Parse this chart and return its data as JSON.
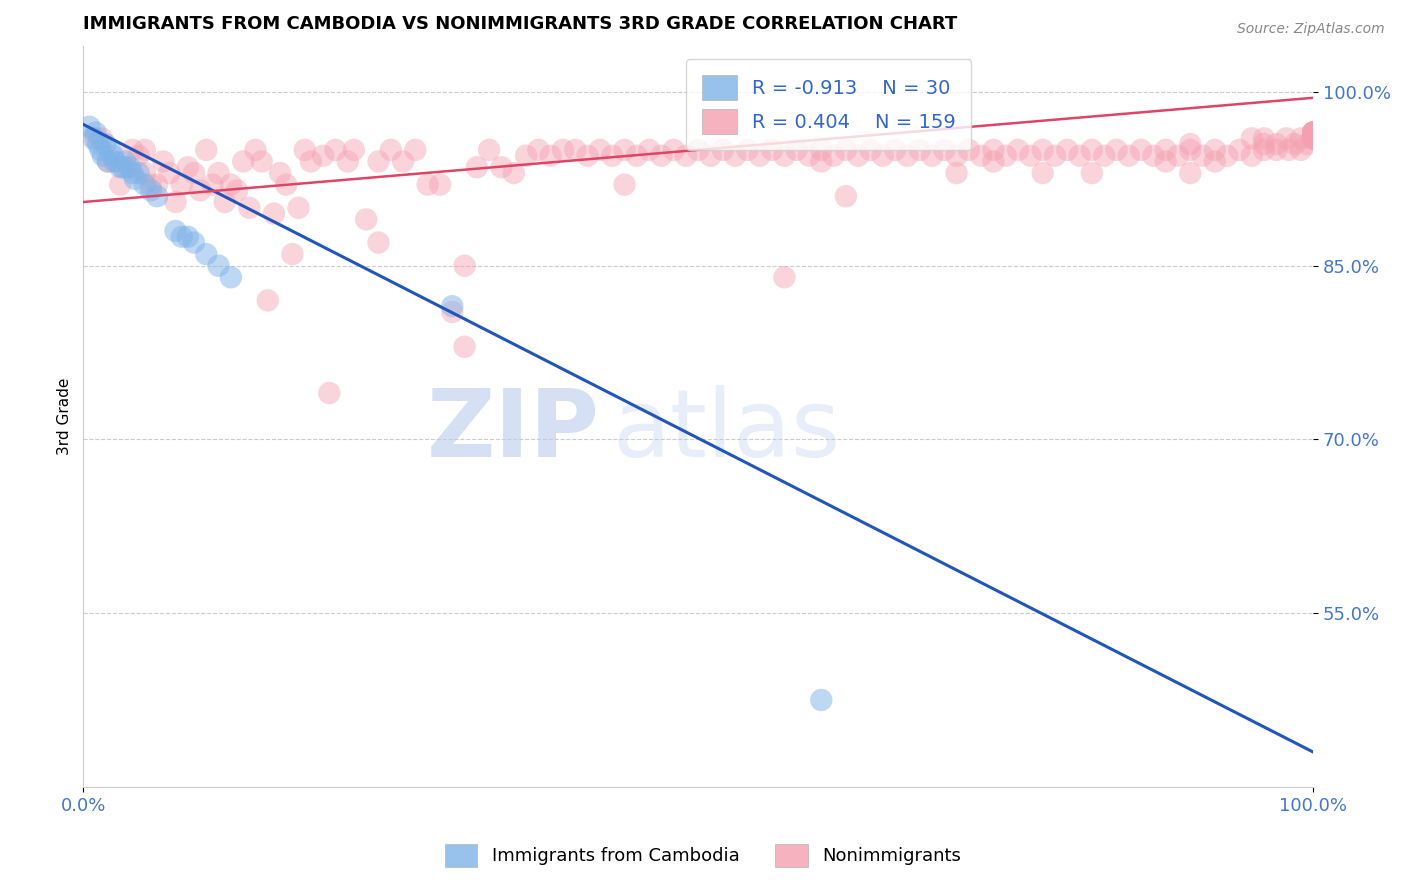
{
  "title": "IMMIGRANTS FROM CAMBODIA VS NONIMMIGRANTS 3RD GRADE CORRELATION CHART",
  "source": "Source: ZipAtlas.com",
  "ylabel": "3rd Grade",
  "xlim": [
    0.0,
    1.0
  ],
  "ylim": [
    0.4,
    1.04
  ],
  "yticks": [
    0.55,
    0.7,
    0.85,
    1.0
  ],
  "ytick_labels": [
    "55.0%",
    "70.0%",
    "85.0%",
    "100.0%"
  ],
  "xticks": [
    0.0,
    1.0
  ],
  "xtick_labels": [
    "0.0%",
    "100.0%"
  ],
  "blue_R": -0.913,
  "blue_N": 30,
  "pink_R": 0.404,
  "pink_N": 159,
  "blue_color": "#7EB3E8",
  "pink_color": "#F4A0B0",
  "blue_line_color": "#2255BB",
  "pink_line_color": "#DD4466",
  "legend_label_blue": "Immigrants from Cambodia",
  "legend_label_pink": "Nonimmigrants",
  "watermark_zip": "ZIP",
  "watermark_atlas": "atlas",
  "blue_scatter_x": [
    0.005,
    0.008,
    0.01,
    0.012,
    0.014,
    0.016,
    0.018,
    0.02,
    0.022,
    0.024,
    0.026,
    0.03,
    0.032,
    0.034,
    0.038,
    0.04,
    0.042,
    0.045,
    0.05,
    0.055,
    0.06,
    0.075,
    0.08,
    0.085,
    0.09,
    0.1,
    0.11,
    0.12,
    0.3,
    0.6
  ],
  "blue_scatter_y": [
    0.97,
    0.96,
    0.965,
    0.955,
    0.95,
    0.945,
    0.955,
    0.94,
    0.95,
    0.945,
    0.94,
    0.935,
    0.935,
    0.94,
    0.935,
    0.93,
    0.925,
    0.93,
    0.92,
    0.915,
    0.91,
    0.88,
    0.875,
    0.875,
    0.87,
    0.86,
    0.85,
    0.84,
    0.815,
    0.475
  ],
  "pink_scatter_x": [
    0.01,
    0.02,
    0.03,
    0.04,
    0.05,
    0.05,
    0.06,
    0.065,
    0.07,
    0.08,
    0.09,
    0.1,
    0.11,
    0.12,
    0.13,
    0.14,
    0.15,
    0.16,
    0.18,
    0.2,
    0.22,
    0.25,
    0.27,
    0.29,
    0.31,
    0.33,
    0.35,
    0.37,
    0.39,
    0.4,
    0.42,
    0.44,
    0.46,
    0.48,
    0.5,
    0.52,
    0.54,
    0.56,
    0.58,
    0.6,
    0.62,
    0.64,
    0.66,
    0.68,
    0.7,
    0.72,
    0.74,
    0.76,
    0.78,
    0.8,
    0.82,
    0.84,
    0.86,
    0.88,
    0.9,
    0.92,
    0.94,
    0.96,
    0.97,
    0.98,
    0.99,
    1.0,
    1.0,
    1.0,
    1.0,
    1.0,
    1.0,
    1.0,
    1.0,
    1.0,
    0.015,
    0.025,
    0.035,
    0.045,
    0.055,
    0.075,
    0.085,
    0.095,
    0.105,
    0.115,
    0.125,
    0.135,
    0.145,
    0.155,
    0.165,
    0.175,
    0.185,
    0.195,
    0.205,
    0.215,
    0.23,
    0.24,
    0.26,
    0.28,
    0.3,
    0.32,
    0.34,
    0.36,
    0.38,
    0.41,
    0.43,
    0.45,
    0.47,
    0.49,
    0.51,
    0.53,
    0.55,
    0.57,
    0.59,
    0.61,
    0.63,
    0.65,
    0.67,
    0.69,
    0.71,
    0.73,
    0.75,
    0.77,
    0.79,
    0.81,
    0.83,
    0.85,
    0.87,
    0.89,
    0.91,
    0.93,
    0.95,
    0.96,
    0.97,
    0.985,
    0.995,
    1.0,
    1.0,
    1.0,
    1.0,
    1.0,
    1.0,
    1.0,
    1.0,
    1.0,
    0.24,
    0.31,
    0.71,
    0.9,
    0.92,
    0.17,
    0.44,
    0.6,
    0.74,
    0.9,
    0.57,
    0.82,
    0.62,
    0.78,
    0.88,
    0.95,
    0.96,
    0.978,
    0.99
  ],
  "pink_scatter_y": [
    0.96,
    0.94,
    0.92,
    0.95,
    0.93,
    0.95,
    0.92,
    0.94,
    0.93,
    0.92,
    0.93,
    0.95,
    0.93,
    0.92,
    0.94,
    0.95,
    0.82,
    0.93,
    0.95,
    0.74,
    0.95,
    0.95,
    0.95,
    0.92,
    0.85,
    0.95,
    0.93,
    0.95,
    0.95,
    0.95,
    0.95,
    0.95,
    0.95,
    0.95,
    0.95,
    0.95,
    0.95,
    0.95,
    0.95,
    0.95,
    0.95,
    0.95,
    0.95,
    0.95,
    0.95,
    0.95,
    0.95,
    0.95,
    0.95,
    0.95,
    0.95,
    0.95,
    0.95,
    0.95,
    0.95,
    0.95,
    0.95,
    0.95,
    0.95,
    0.95,
    0.95,
    0.96,
    0.96,
    0.96,
    0.96,
    0.96,
    0.96,
    0.96,
    0.96,
    0.96,
    0.96,
    0.94,
    0.935,
    0.945,
    0.92,
    0.905,
    0.935,
    0.915,
    0.92,
    0.905,
    0.915,
    0.9,
    0.94,
    0.895,
    0.92,
    0.9,
    0.94,
    0.945,
    0.95,
    0.94,
    0.89,
    0.94,
    0.94,
    0.92,
    0.81,
    0.935,
    0.935,
    0.945,
    0.945,
    0.945,
    0.945,
    0.945,
    0.945,
    0.945,
    0.945,
    0.945,
    0.945,
    0.945,
    0.945,
    0.945,
    0.945,
    0.945,
    0.945,
    0.945,
    0.945,
    0.945,
    0.945,
    0.945,
    0.945,
    0.945,
    0.945,
    0.945,
    0.945,
    0.945,
    0.945,
    0.945,
    0.945,
    0.955,
    0.955,
    0.955,
    0.955,
    0.965,
    0.965,
    0.965,
    0.965,
    0.965,
    0.965,
    0.965,
    0.965,
    0.965,
    0.87,
    0.78,
    0.93,
    0.93,
    0.94,
    0.86,
    0.92,
    0.94,
    0.94,
    0.955,
    0.84,
    0.93,
    0.91,
    0.93,
    0.94,
    0.96,
    0.96,
    0.96,
    0.96
  ],
  "blue_trend_x": [
    0.0,
    1.0
  ],
  "blue_trend_y": [
    0.972,
    0.43
  ],
  "pink_trend_x": [
    0.0,
    1.0
  ],
  "pink_trend_y": [
    0.905,
    0.995
  ]
}
